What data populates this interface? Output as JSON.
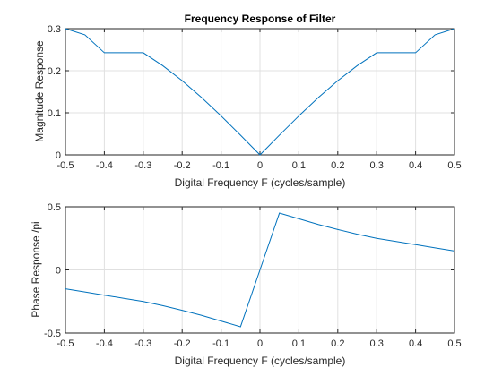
{
  "figure": {
    "background": "#ffffff",
    "line_color": "#0072bd"
  },
  "chart_data": [
    {
      "type": "line",
      "title": "Frequency Response of Filter",
      "xlabel": "Digital Frequency  F (cycles/sample)",
      "ylabel": "Magnitude Response",
      "xlim": [
        -0.5,
        0.5
      ],
      "ylim": [
        0,
        0.3
      ],
      "grid": true,
      "xticks": [
        "-0.5",
        "-0.4",
        "-0.3",
        "-0.2",
        "-0.1",
        "0",
        "0.1",
        "0.2",
        "0.3",
        "0.4",
        "0.5"
      ],
      "xtick_values": [
        -0.5,
        -0.4,
        -0.3,
        -0.2,
        -0.1,
        0,
        0.1,
        0.2,
        0.3,
        0.4,
        0.5
      ],
      "yticks": [
        "0",
        "0.1",
        "0.2",
        "0.3"
      ],
      "ytick_values": [
        0,
        0.1,
        0.2,
        0.3
      ],
      "series": [
        {
          "x": [
            -0.5,
            -0.45,
            -0.4,
            -0.35,
            -0.3,
            -0.25,
            -0.2,
            -0.15,
            -0.1,
            -0.05,
            0,
            0.05,
            0.1,
            0.15,
            0.2,
            0.25,
            0.3,
            0.35,
            0.4,
            0.45,
            0.5
          ],
          "y": [
            0.3,
            0.2853,
            0.2427,
            0.2427,
            0.2427,
            0.2121,
            0.1763,
            0.1362,
            0.0927,
            0.0469,
            0,
            0.0469,
            0.0927,
            0.1362,
            0.1763,
            0.2121,
            0.2427,
            0.2427,
            0.2427,
            0.2853,
            0.3
          ]
        }
      ]
    },
    {
      "type": "line",
      "title": "",
      "xlabel": "Digital Frequency  F (cycles/sample)",
      "ylabel": "Phase Response /pi",
      "xlim": [
        -0.5,
        0.5
      ],
      "ylim": [
        -0.5,
        0.5
      ],
      "grid": true,
      "xticks": [
        "-0.5",
        "-0.4",
        "-0.3",
        "-0.2",
        "-0.1",
        "0",
        "0.1",
        "0.2",
        "0.3",
        "0.4",
        "0.5"
      ],
      "xtick_values": [
        -0.5,
        -0.4,
        -0.3,
        -0.2,
        -0.1,
        0,
        0.1,
        0.2,
        0.3,
        0.4,
        0.5
      ],
      "yticks": [
        "-0.5",
        "0",
        "0.5"
      ],
      "ytick_values": [
        -0.5,
        0,
        0.5
      ],
      "series": [
        {
          "x": [
            -0.5,
            -0.45,
            -0.4,
            -0.35,
            -0.3,
            -0.25,
            -0.2,
            -0.15,
            -0.1,
            -0.05,
            0,
            0.05,
            0.1,
            0.15,
            0.2,
            0.25,
            0.3,
            0.35,
            0.4,
            0.45,
            0.5
          ],
          "y": [
            -0.15,
            -0.175,
            -0.2,
            -0.225,
            -0.25,
            -0.283,
            -0.32,
            -0.36,
            -0.405,
            -0.45,
            0,
            0.45,
            0.405,
            0.36,
            0.32,
            0.283,
            0.25,
            0.225,
            0.2,
            0.175,
            0.15
          ]
        }
      ]
    }
  ]
}
